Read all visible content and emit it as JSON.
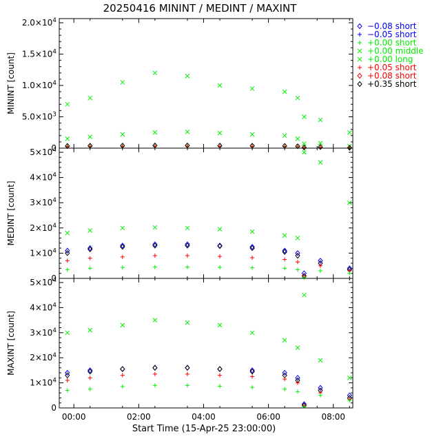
{
  "title": "20250416 MININT / MEDINT / MAXINT",
  "xlabel": "Start Time (15-Apr-25 23:00:00)",
  "x_tick_labels": [
    "00:00",
    "02:00",
    "04:00",
    "06:00",
    "08:00"
  ],
  "x_tick_hours": [
    1,
    3,
    5,
    7,
    9
  ],
  "x_range_hours": [
    0.55,
    9.6
  ],
  "chart_data": [
    {
      "type": "scatter",
      "panel": "top",
      "ylabel": "MININT [count]",
      "ylim": [
        0,
        20000
      ],
      "y_tick_values": [
        0,
        5000,
        10000,
        15000,
        20000
      ],
      "y_tick_labels": [
        {
          "mant": "0",
          "exp": ""
        },
        {
          "mant": "5.0×10",
          "exp": "3"
        },
        {
          "mant": "1.0×10",
          "exp": "4"
        },
        {
          "mant": "1.5×10",
          "exp": "4"
        },
        {
          "mant": "2.0×10",
          "exp": "4"
        }
      ],
      "x": [
        0.8,
        1.5,
        2.5,
        3.5,
        4.5,
        5.5,
        6.5,
        7.5,
        7.9,
        8.1,
        8.6,
        9.5
      ],
      "series": [
        {
          "name": "+0.00 long",
          "values": [
            7000,
            8000,
            10500,
            12000,
            11500,
            10000,
            9500,
            9000,
            8000,
            5000,
            4500,
            2500
          ]
        },
        {
          "name": "+0.00 middle",
          "values": [
            1500,
            1800,
            2200,
            2500,
            2600,
            2400,
            2200,
            2000,
            1500,
            700,
            800,
            300
          ]
        },
        {
          "name": "+0.00 short",
          "values": [
            300,
            320,
            340,
            360,
            360,
            340,
            320,
            300,
            250,
            100,
            150,
            50
          ]
        },
        {
          "name": "+0.05 short",
          "values": [
            250,
            280,
            300,
            320,
            320,
            300,
            280,
            260,
            200,
            80,
            130,
            40
          ]
        },
        {
          "name": "+0.35 short",
          "values": [
            350,
            380,
            400,
            420,
            420,
            400,
            380,
            360,
            300,
            100,
            180,
            60
          ]
        }
      ]
    },
    {
      "type": "scatter",
      "panel": "middle",
      "ylabel": "MEDINT [count]",
      "ylim": [
        0,
        50000
      ],
      "y_tick_values": [
        0,
        10000,
        20000,
        30000,
        40000,
        50000
      ],
      "y_tick_labels": [
        {
          "mant": "0",
          "exp": ""
        },
        {
          "mant": "1×10",
          "exp": "4"
        },
        {
          "mant": "2×10",
          "exp": "4"
        },
        {
          "mant": "3×10",
          "exp": "4"
        },
        {
          "mant": "4×10",
          "exp": "4"
        },
        {
          "mant": "5×10",
          "exp": "4"
        }
      ],
      "x": [
        0.8,
        1.5,
        2.5,
        3.5,
        4.5,
        5.5,
        6.5,
        7.5,
        7.9,
        8.1,
        8.6,
        9.5
      ],
      "series": [
        {
          "name": "+0.00 long",
          "values": [
            18000,
            19000,
            20000,
            20200,
            20000,
            19500,
            18500,
            17000,
            16000,
            50000,
            46000,
            30000
          ]
        },
        {
          "name": "−0.08 short",
          "values": [
            11000,
            12000,
            13000,
            13500,
            13500,
            13000,
            12500,
            11000,
            10000,
            2000,
            7000,
            4000
          ]
        },
        {
          "name": "+0.35 short",
          "values": [
            10000,
            11500,
            12500,
            13000,
            13000,
            12800,
            12000,
            10500,
            9000,
            1000,
            6000,
            3500
          ]
        },
        {
          "name": "+0.05 short",
          "values": [
            7000,
            8000,
            8500,
            9000,
            9000,
            8700,
            8200,
            7500,
            6500,
            1000,
            5000,
            3000
          ]
        },
        {
          "name": "+0.00 short",
          "values": [
            3500,
            4000,
            4300,
            4500,
            4500,
            4400,
            4200,
            4000,
            3500,
            300,
            3000,
            2000
          ]
        }
      ]
    },
    {
      "type": "scatter",
      "panel": "bottom",
      "ylabel": "MAXINT [count]",
      "ylim": [
        0,
        50000
      ],
      "y_tick_values": [
        0,
        10000,
        20000,
        30000,
        40000,
        50000
      ],
      "y_tick_labels": [
        {
          "mant": "0",
          "exp": ""
        },
        {
          "mant": "1×10",
          "exp": "4"
        },
        {
          "mant": "2×10",
          "exp": "4"
        },
        {
          "mant": "3×10",
          "exp": "4"
        },
        {
          "mant": "4×10",
          "exp": "4"
        },
        {
          "mant": "5×10",
          "exp": "4"
        }
      ],
      "x": [
        0.8,
        1.5,
        2.5,
        3.5,
        4.5,
        5.5,
        6.5,
        7.5,
        7.9,
        8.1,
        8.6,
        9.5
      ],
      "series": [
        {
          "name": "+0.00 long",
          "values": [
            30000,
            31000,
            33000,
            35000,
            34000,
            33000,
            30000,
            27000,
            24000,
            45000,
            19000,
            12000
          ]
        },
        {
          "name": "−0.08 short",
          "values": [
            14000,
            15000,
            15500,
            16000,
            16000,
            15500,
            15000,
            14000,
            12000,
            1500,
            8000,
            5000
          ]
        },
        {
          "name": "+0.35 short",
          "values": [
            13000,
            14500,
            15500,
            16000,
            16000,
            15500,
            14500,
            13000,
            11000,
            1000,
            7000,
            4000
          ]
        },
        {
          "name": "+0.05 short",
          "values": [
            11000,
            12000,
            13000,
            13500,
            13500,
            13000,
            12500,
            11500,
            10000,
            1000,
            6000,
            3500
          ]
        },
        {
          "name": "+0.00 short",
          "values": [
            7000,
            7500,
            8500,
            9000,
            9000,
            8700,
            8200,
            7500,
            6500,
            500,
            5000,
            3000
          ]
        }
      ]
    }
  ],
  "legend": [
    {
      "marker": "diamond",
      "color": "#0000ff",
      "label": "−0.08 short"
    },
    {
      "marker": "plus",
      "color": "#0000ff",
      "label": "−0.05 short"
    },
    {
      "marker": "plus",
      "color": "#00ee00",
      "label": "+0.00 short"
    },
    {
      "marker": "cross",
      "color": "#00ee00",
      "label": "+0.00 middle"
    },
    {
      "marker": "cross",
      "color": "#00ee00",
      "label": "+0.00 long"
    },
    {
      "marker": "plus",
      "color": "#ff0000",
      "label": "+0.05 short"
    },
    {
      "marker": "diamond",
      "color": "#ff0000",
      "label": "+0.08 short"
    },
    {
      "marker": "diamond",
      "color": "#000000",
      "label": "+0.35 short"
    }
  ],
  "series_colors": {
    "+0.00 long": "#00ee00",
    "+0.00 middle": "#00ee00",
    "+0.00 short": "#00ee00",
    "+0.05 short": "#ff0000",
    "−0.08 short": "#0000ff",
    "+0.35 short": "#000000"
  },
  "series_markers": {
    "+0.00 long": "cross",
    "+0.00 middle": "cross",
    "+0.00 short": "plus",
    "+0.05 short": "plus",
    "−0.08 short": "diamond",
    "+0.35 short": "diamond"
  }
}
